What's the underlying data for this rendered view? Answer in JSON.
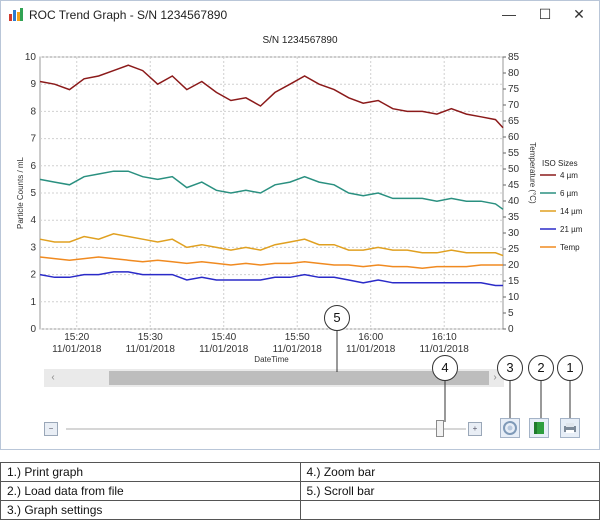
{
  "window": {
    "title": "ROC Trend Graph - S/N 1234567890",
    "minimize": "—",
    "maximize": "☐",
    "close": "✕"
  },
  "chart": {
    "title": "S/N 1234567890"
  },
  "chart_data": {
    "type": "line",
    "title": "S/N 1234567890",
    "xlabel": "DateTime",
    "ylabel": "Particle Counts / mL",
    "y2label": "Temperature (°C)",
    "ylim": [
      0,
      10
    ],
    "y2lim": [
      0,
      85
    ],
    "yticks": [
      0,
      1,
      2,
      3,
      4,
      5,
      6,
      7,
      8,
      9,
      10
    ],
    "y2ticks": [
      0,
      5,
      10,
      15,
      20,
      25,
      30,
      35,
      40,
      45,
      50,
      55,
      60,
      65,
      70,
      75,
      80,
      85
    ],
    "xticks": [
      {
        "time": "15:20",
        "date": "11/01/2018"
      },
      {
        "time": "15:30",
        "date": "11/01/2018"
      },
      {
        "time": "15:40",
        "date": "11/01/2018"
      },
      {
        "time": "15:50",
        "date": "11/01/2018"
      },
      {
        "time": "16:00",
        "date": "11/01/2018"
      },
      {
        "time": "16:10",
        "date": "11/01/2018"
      }
    ],
    "xrange_minutes": [
      15.25,
      16.3
    ],
    "legend_title": "ISO Sizes",
    "legend_position": "right",
    "grid": true,
    "series": [
      {
        "name": "4 µm",
        "color": "#8b1a1a",
        "x": [
          15.25,
          15.283,
          15.317,
          15.35,
          15.383,
          15.417,
          15.45,
          15.483,
          15.517,
          15.55,
          15.583,
          15.617,
          15.65,
          15.683,
          15.717,
          15.75,
          15.783,
          15.817,
          15.85,
          15.883,
          15.917,
          15.95,
          15.983,
          16.017,
          16.05,
          16.083,
          16.117,
          16.15,
          16.183,
          16.217,
          16.25,
          16.283,
          16.3
        ],
        "values": [
          9.1,
          9.0,
          8.8,
          9.2,
          9.3,
          9.5,
          9.7,
          9.5,
          9.0,
          9.3,
          8.8,
          9.1,
          8.7,
          8.4,
          8.5,
          8.2,
          8.7,
          9.0,
          9.3,
          9.0,
          8.8,
          8.5,
          8.3,
          8.4,
          8.1,
          8.0,
          8.0,
          7.9,
          8.1,
          7.9,
          7.8,
          7.7,
          7.4
        ]
      },
      {
        "name": "6 µm",
        "color": "#2a9080",
        "x": [
          15.25,
          15.283,
          15.317,
          15.35,
          15.383,
          15.417,
          15.45,
          15.483,
          15.517,
          15.55,
          15.583,
          15.617,
          15.65,
          15.683,
          15.717,
          15.75,
          15.783,
          15.817,
          15.85,
          15.883,
          15.917,
          15.95,
          15.983,
          16.017,
          16.05,
          16.083,
          16.117,
          16.15,
          16.183,
          16.217,
          16.25,
          16.283,
          16.3
        ],
        "values": [
          5.5,
          5.4,
          5.3,
          5.6,
          5.7,
          5.8,
          5.8,
          5.6,
          5.5,
          5.6,
          5.2,
          5.4,
          5.1,
          5.0,
          5.1,
          5.0,
          5.3,
          5.4,
          5.6,
          5.4,
          5.3,
          5.0,
          4.9,
          5.0,
          4.8,
          4.8,
          4.8,
          4.7,
          4.8,
          4.7,
          4.7,
          4.6,
          4.4
        ]
      },
      {
        "name": "14 µm",
        "color": "#e0a020",
        "x": [
          15.25,
          15.283,
          15.317,
          15.35,
          15.383,
          15.417,
          15.45,
          15.483,
          15.517,
          15.55,
          15.583,
          15.617,
          15.65,
          15.683,
          15.717,
          15.75,
          15.783,
          15.817,
          15.85,
          15.883,
          15.917,
          15.95,
          15.983,
          16.017,
          16.05,
          16.083,
          16.117,
          16.15,
          16.183,
          16.217,
          16.25,
          16.283,
          16.3
        ],
        "values": [
          3.3,
          3.2,
          3.2,
          3.4,
          3.3,
          3.5,
          3.4,
          3.3,
          3.2,
          3.3,
          3.0,
          3.1,
          3.0,
          2.9,
          3.0,
          2.9,
          3.1,
          3.2,
          3.3,
          3.1,
          3.1,
          2.9,
          2.9,
          3.0,
          2.9,
          2.9,
          2.8,
          2.8,
          2.9,
          2.8,
          2.8,
          2.8,
          2.7
        ]
      },
      {
        "name": "21 µm",
        "color": "#2a2ac8",
        "x": [
          15.25,
          15.283,
          15.317,
          15.35,
          15.383,
          15.417,
          15.45,
          15.483,
          15.517,
          15.55,
          15.583,
          15.617,
          15.65,
          15.683,
          15.717,
          15.75,
          15.783,
          15.817,
          15.85,
          15.883,
          15.917,
          15.95,
          15.983,
          16.017,
          16.05,
          16.083,
          16.117,
          16.15,
          16.183,
          16.217,
          16.25,
          16.283,
          16.3
        ],
        "values": [
          2.0,
          1.9,
          1.9,
          2.0,
          2.0,
          2.1,
          2.1,
          2.0,
          2.0,
          2.0,
          1.8,
          1.9,
          1.8,
          1.8,
          1.8,
          1.8,
          1.9,
          1.9,
          2.0,
          1.9,
          1.9,
          1.8,
          1.7,
          1.8,
          1.7,
          1.7,
          1.7,
          1.7,
          1.7,
          1.7,
          1.7,
          1.6,
          1.6
        ]
      },
      {
        "name": "Temp",
        "color": "#f08a20",
        "axis": "right",
        "x": [
          15.25,
          15.283,
          15.317,
          15.35,
          15.383,
          15.417,
          15.45,
          15.483,
          15.517,
          15.55,
          15.583,
          15.617,
          15.65,
          15.683,
          15.717,
          15.75,
          15.783,
          15.817,
          15.85,
          15.883,
          15.917,
          15.95,
          15.983,
          16.017,
          16.05,
          16.083,
          16.117,
          16.15,
          16.183,
          16.217,
          16.25,
          16.283,
          16.3
        ],
        "values": [
          22.5,
          22.0,
          21.5,
          22.0,
          22.5,
          22.0,
          21.5,
          21.0,
          21.5,
          21.0,
          20.5,
          21.0,
          20.5,
          20.0,
          20.5,
          20.0,
          20.5,
          20.5,
          21.0,
          20.5,
          20.0,
          20.0,
          19.5,
          20.0,
          19.5,
          19.5,
          19.0,
          19.5,
          19.5,
          19.5,
          20.0,
          20.0,
          20.0
        ]
      }
    ]
  },
  "controls": {
    "scroll_left": "‹",
    "scroll_right": "›",
    "zoom_out": "−",
    "zoom_in": "+"
  },
  "callouts": [
    "1",
    "2",
    "3",
    "4",
    "5"
  ],
  "legend_table": [
    [
      "1.) Print graph",
      "4.) Zoom bar"
    ],
    [
      "2.) Load data from file",
      "5.) Scroll bar"
    ],
    [
      "3.) Graph settings",
      ""
    ]
  ],
  "colors": {
    "window_border": "#b9c6d8",
    "grid": "#c8c8c8",
    "scrollbar_track": "#eaeaea",
    "scrollbar_thumb": "#bdbdbd"
  }
}
